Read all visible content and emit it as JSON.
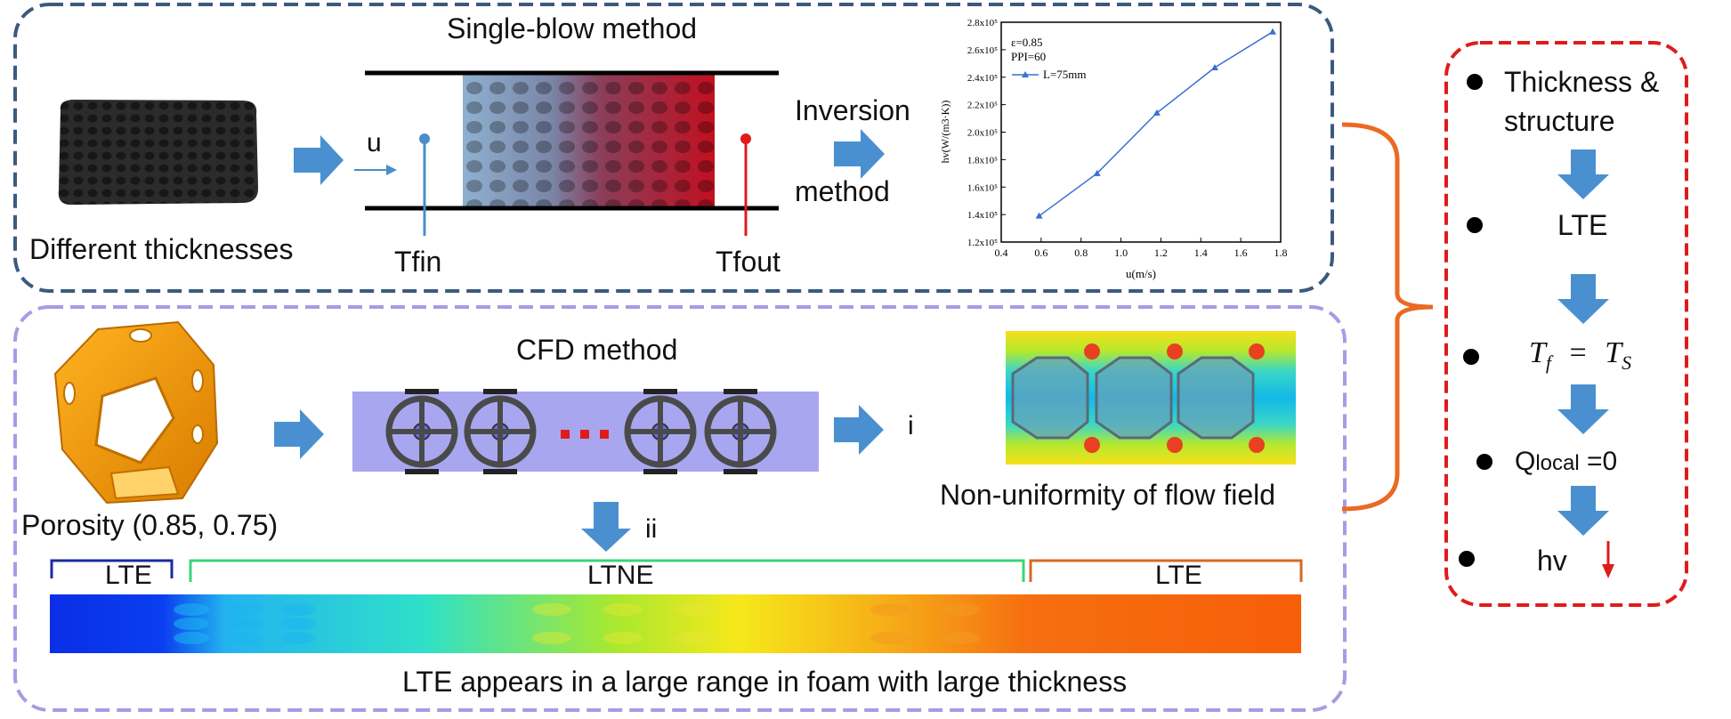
{
  "top_panel": {
    "title": "Single-blow method",
    "left_caption": "Different thicknesses",
    "u_label": "u",
    "tfin_label": "Tfin",
    "tfout_label": "Tfout",
    "inversion_line1": "Inversion",
    "inversion_line2": "method"
  },
  "bottom_panel": {
    "porosity_caption": "Porosity (0.85, 0.75)",
    "cfd_title": "CFD method",
    "marker_i": "i",
    "marker_ii": "ii",
    "nonuniform_caption": "Non-uniformity of flow field",
    "segment_left": "LTE",
    "segment_mid": "LTNE",
    "segment_right": "LTE",
    "bottom_caption": "LTE appears in a large range in foam with large thickness"
  },
  "summary_panel": {
    "items": [
      {
        "line1": "Thickness &",
        "line2": "structure"
      },
      {
        "line1": "LTE"
      },
      {
        "lhs": "T",
        "lhs_sub": "f",
        "eq": "=",
        "rhs": "T",
        "rhs_sub": "S"
      },
      {
        "q": "Q",
        "q_sub": "local",
        "rest": " =0"
      },
      {
        "line1": "hv"
      }
    ]
  },
  "colors": {
    "top_border": "#3b5a7e",
    "bottom_border": "#a99ae6",
    "summary_border": "#e01b1b",
    "arrow_blue": "#4a90d0",
    "brace_orange": "#ea6a24",
    "tfin_blue": "#4a8ec8",
    "tfout_red": "#e01b1b"
  },
  "chart_data": {
    "type": "line",
    "x": [
      0.59,
      0.88,
      1.18,
      1.47,
      1.76
    ],
    "series": [
      {
        "name": "L=75mm",
        "values": [
          139000,
          170000,
          214000,
          247000,
          273000
        ]
      }
    ],
    "annotations": [
      "ε=0.85",
      "PPI=60"
    ],
    "xlabel": "u(m/s)",
    "ylabel": "hv(W/(m3·K))",
    "xlim": [
      0.4,
      1.8
    ],
    "ylim": [
      120000,
      280000
    ],
    "xticks": [
      "0.4",
      "0.6",
      "0.8",
      "1.0",
      "1.2",
      "1.4",
      "1.6",
      "1.8"
    ],
    "yticks": [
      "1.2x10⁵",
      "1.4x10⁵",
      "1.6x10⁵",
      "1.8x10⁵",
      "2.0x10⁵",
      "2.2x10⁵",
      "2.4x10⁵",
      "2.6x10⁵",
      "2.8x10⁵"
    ],
    "legend": "top-left"
  }
}
